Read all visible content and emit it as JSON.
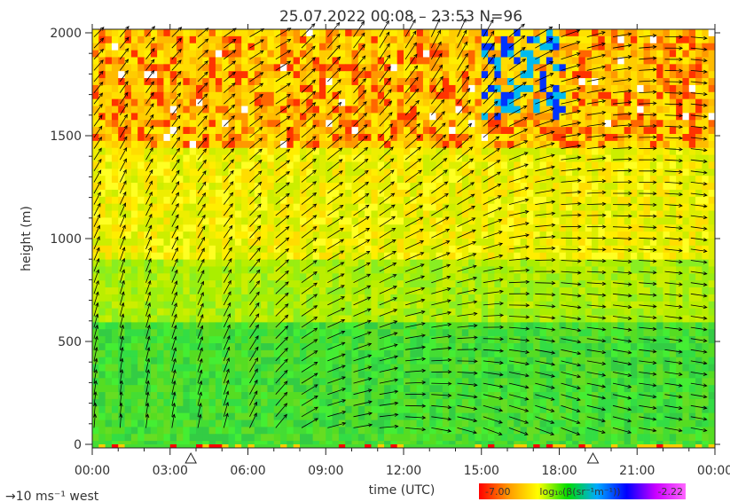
{
  "chart_data": {
    "type": "heatmap",
    "title": "25.07.2022 00:08 – 23:53 N=96",
    "xlabel": "time (UTC)",
    "ylabel": "height (m)",
    "x_ticks": [
      "00:00",
      "03:00",
      "06:00",
      "09:00",
      "12:00",
      "15:00",
      "18:00",
      "21:00",
      "00:00"
    ],
    "y_ticks": [
      "0",
      "500",
      "1000",
      "1500",
      "2000"
    ],
    "x_range_hours": [
      0,
      24
    ],
    "y_range_m": [
      0,
      2000
    ],
    "colorbar": {
      "label": "log₁₀(β(sr⁻¹m⁻¹))",
      "min_label": "-7.00",
      "max_label": "-2.22",
      "colors": [
        "#ff0000",
        "#ff9900",
        "#ffff00",
        "#00dd00",
        "#00aaff",
        "#0000ff",
        "#cc00ff",
        "#ff66ff"
      ]
    },
    "wind_key": "→10 ms⁻¹ west",
    "markers_hours": [
      3.8,
      19.3
    ],
    "wind_profiles": [
      {
        "hour": 0.0,
        "dir_low": 5,
        "dir_high": 45,
        "len": 0.55
      },
      {
        "hour": 1.0,
        "dir_low": 5,
        "dir_high": 40,
        "len": 0.55
      },
      {
        "hour": 2.0,
        "dir_low": 8,
        "dir_high": 40,
        "len": 0.55
      },
      {
        "hour": 3.0,
        "dir_low": 10,
        "dir_high": 45,
        "len": 0.55
      },
      {
        "hour": 4.0,
        "dir_low": 12,
        "dir_high": 50,
        "len": 0.55
      },
      {
        "hour": 5.0,
        "dir_low": 15,
        "dir_high": 55,
        "len": 0.6
      },
      {
        "hour": 6.0,
        "dir_low": 25,
        "dir_high": 60,
        "len": 0.65
      },
      {
        "hour": 7.0,
        "dir_low": 40,
        "dir_high": 60,
        "len": 0.7
      },
      {
        "hour": 8.0,
        "dir_low": 60,
        "dir_high": 45,
        "len": 0.75
      },
      {
        "hour": 9.0,
        "dir_low": 75,
        "dir_high": 40,
        "len": 0.75
      },
      {
        "hour": 10.0,
        "dir_low": 80,
        "dir_high": 35,
        "len": 0.75
      },
      {
        "hour": 11.0,
        "dir_low": 85,
        "dir_high": 30,
        "len": 0.75
      },
      {
        "hour": 12.0,
        "dir_low": 95,
        "dir_high": 30,
        "len": 0.8
      },
      {
        "hour": 13.0,
        "dir_low": 100,
        "dir_high": 25,
        "len": 0.8
      },
      {
        "hour": 14.0,
        "dir_low": 105,
        "dir_high": 25,
        "len": 0.8
      },
      {
        "hour": 15.0,
        "dir_low": 110,
        "dir_high": 30,
        "len": 0.8
      },
      {
        "hour": 16.0,
        "dir_low": 110,
        "dir_high": 50,
        "len": 0.8
      },
      {
        "hour": 17.0,
        "dir_low": 110,
        "dir_high": 60,
        "len": 0.8
      },
      {
        "hour": 18.0,
        "dir_low": 110,
        "dir_high": 70,
        "len": 0.8
      },
      {
        "hour": 19.0,
        "dir_low": 105,
        "dir_high": 75,
        "len": 0.75
      },
      {
        "hour": 20.0,
        "dir_low": 105,
        "dir_high": 80,
        "len": 0.75
      },
      {
        "hour": 21.0,
        "dir_low": 100,
        "dir_high": 85,
        "len": 0.7
      },
      {
        "hour": 22.0,
        "dir_low": 100,
        "dir_high": 90,
        "len": 0.7
      },
      {
        "hour": 23.0,
        "dir_low": 100,
        "dir_high": 95,
        "len": 0.65
      }
    ]
  }
}
